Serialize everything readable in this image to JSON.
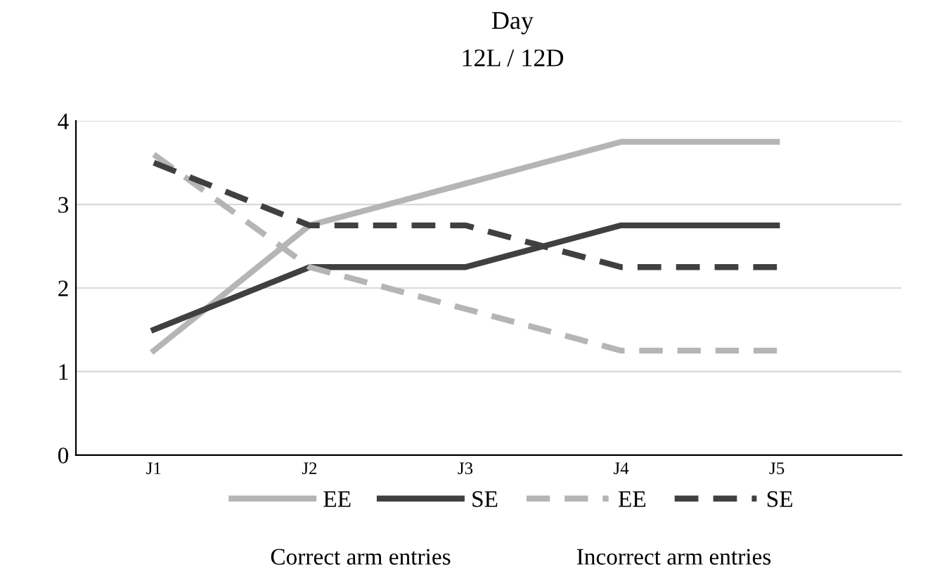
{
  "chart_data": {
    "type": "line",
    "title": "Day",
    "subtitle": "12L / 12D",
    "categories": [
      "J1",
      "J2",
      "J3",
      "J4",
      "J5"
    ],
    "series": [
      {
        "name": "EE",
        "color": "#b5b5b5",
        "line_style": "solid",
        "values": [
          1.25,
          2.75,
          3.25,
          3.75,
          3.75
        ]
      },
      {
        "name": "SE",
        "color": "#404040",
        "line_style": "solid",
        "values": [
          1.5,
          2.25,
          2.25,
          2.75,
          2.75
        ]
      },
      {
        "name": "EE",
        "color": "#b5b5b5",
        "line_style": "dashed",
        "values": [
          3.6,
          2.25,
          1.75,
          1.25,
          1.25
        ]
      },
      {
        "name": "SE",
        "color": "#404040",
        "line_style": "dashed",
        "values": [
          3.5,
          2.75,
          2.75,
          2.25,
          2.25
        ]
      }
    ],
    "ylim": [
      0,
      4
    ],
    "yticks": [
      0,
      1,
      2,
      3,
      4
    ],
    "grid": "y",
    "legend": "bottom",
    "marker": "none",
    "annotations": [
      "Correct arm entries",
      "Incorrect arm entries"
    ]
  }
}
